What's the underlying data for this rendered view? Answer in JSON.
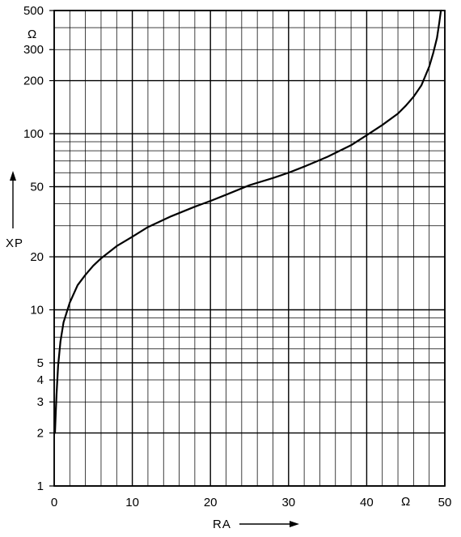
{
  "chart_data": {
    "type": "line",
    "title": "",
    "xlabel": "RA",
    "ylabel": "XP",
    "x_unit": "Ω",
    "y_unit": "Ω",
    "xlim": [
      0,
      50
    ],
    "ylim": [
      1,
      500
    ],
    "yscale": "log",
    "grid": true,
    "x_ticks": [
      0,
      10,
      20,
      30,
      40,
      50
    ],
    "x_tick_labels": [
      "0",
      "10",
      "20",
      "30",
      "40",
      "50"
    ],
    "y_ticks": [
      1,
      2,
      3,
      4,
      5,
      10,
      20,
      50,
      100,
      200,
      300,
      500
    ],
    "y_tick_labels": [
      "1",
      "2",
      "3",
      "4",
      "5",
      "10",
      "20",
      "50",
      "100",
      "200",
      "300",
      "500"
    ],
    "series": [
      {
        "x": [
          0.1,
          0.2,
          0.3,
          0.5,
          0.8,
          1.2,
          2,
          3,
          4,
          5,
          6,
          8,
          10,
          12,
          15,
          18,
          20,
          22,
          25,
          28,
          30,
          32,
          35,
          38,
          40,
          42,
          44,
          45,
          46,
          47,
          48,
          48.5,
          49,
          49.3,
          49.5
        ],
        "y": [
          2,
          2.6,
          3.3,
          4.8,
          6.6,
          8.5,
          11,
          13.8,
          15.8,
          17.8,
          19.6,
          23,
          26,
          29.5,
          34,
          38.5,
          41.5,
          45,
          51,
          56,
          60,
          65,
          74,
          86,
          98,
          112,
          130,
          144,
          162,
          188,
          240,
          285,
          350,
          430,
          500
        ]
      }
    ]
  }
}
